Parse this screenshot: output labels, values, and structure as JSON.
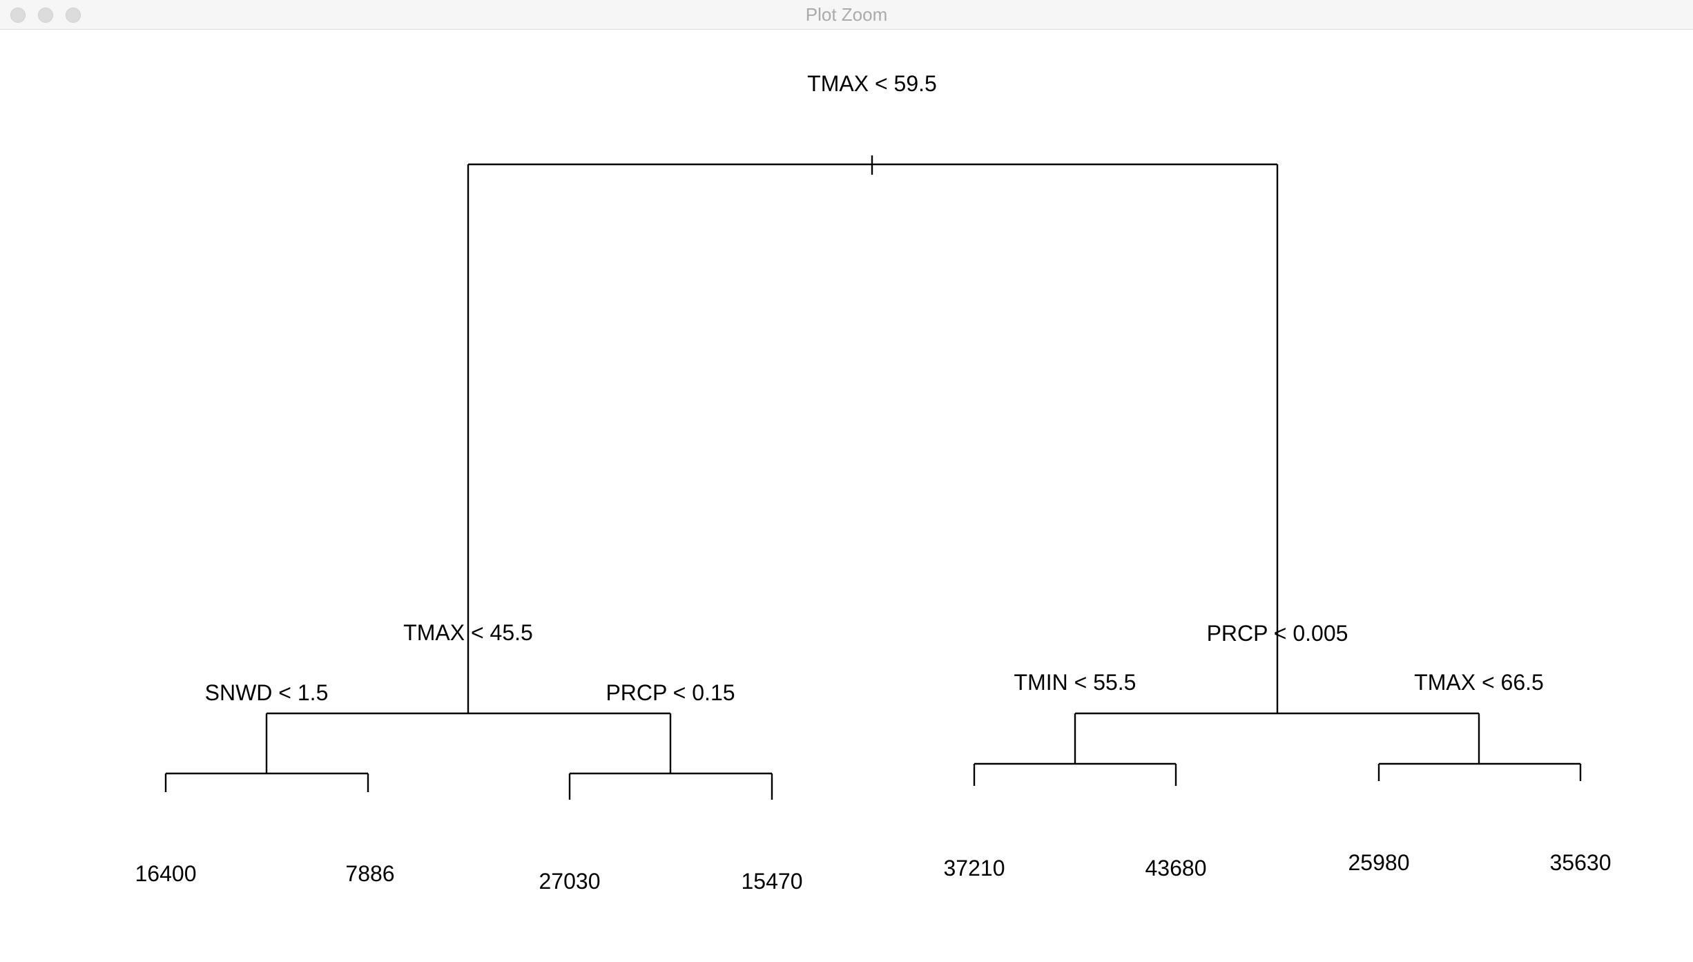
{
  "window": {
    "title": "Plot Zoom",
    "controls": [
      "close",
      "minimize",
      "zoom"
    ]
  },
  "tree": {
    "root": {
      "label": "TMAX < 59.5",
      "left": {
        "label": "TMAX < 45.5",
        "left": {
          "label": "SNWD < 1.5",
          "left": {
            "leaf": "16400"
          },
          "right": {
            "leaf": "7886"
          }
        },
        "right": {
          "label": "PRCP < 0.15",
          "left": {
            "leaf": "27030"
          },
          "right": {
            "leaf": "15470"
          }
        }
      },
      "right": {
        "label": "PRCP < 0.005",
        "left": {
          "label": "TMIN < 55.5",
          "left": {
            "leaf": "37210"
          },
          "right": {
            "leaf": "43680"
          }
        },
        "right": {
          "label": "TMAX < 66.5",
          "left": {
            "leaf": "25980"
          },
          "right": {
            "leaf": "35630"
          }
        }
      }
    }
  },
  "colors": {
    "titlebar": "#f6f6f6",
    "title_text": "#aaaaaa",
    "traffic_light": "#dcdcdc",
    "lines": "#000000"
  }
}
